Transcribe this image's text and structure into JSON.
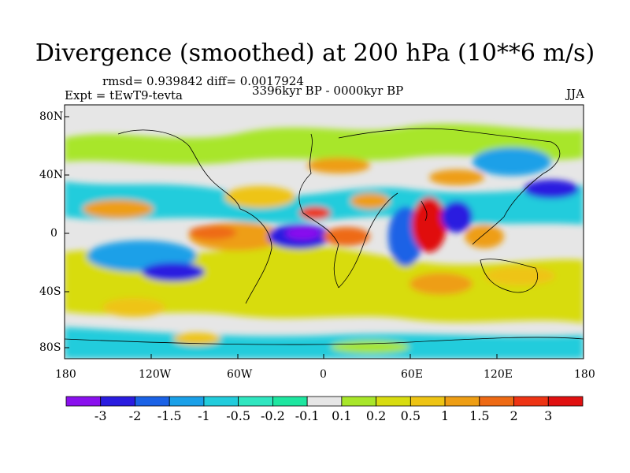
{
  "header": {
    "title": "Divergence (smoothed) at 200 hPa (10**6 m/s)",
    "stats": "rmsd= 0.939842 diff= 0.0017924",
    "experiment": "Expt = tEwT9-tevta",
    "period": "3396kyr BP - 0000kyr BP",
    "season": "JJA"
  },
  "axes": {
    "lat_labels": [
      "80N",
      "40N",
      "0",
      "40S",
      "80S"
    ],
    "lon_labels": [
      "180",
      "120W",
      "60W",
      "0",
      "60E",
      "120E",
      "180"
    ]
  },
  "colorbar": {
    "labels": [
      "-3",
      "-2",
      "-1.5",
      "-1",
      "-0.5",
      "-0.2",
      "-0.1",
      "0.1",
      "0.2",
      "0.5",
      "1",
      "1.5",
      "2",
      "3"
    ],
    "colors": [
      "#8a10ee",
      "#2a1ce0",
      "#1a62e6",
      "#1aa0e8",
      "#22ccdc",
      "#30e6c0",
      "#1ee6a0",
      "#e6e6e6",
      "#a8e62a",
      "#d8dc10",
      "#eec414",
      "#ee9e14",
      "#ee6a14",
      "#ee3414",
      "#e01010"
    ]
  },
  "colors": {
    "neutral": "#e6e6e6",
    "coastline": "#000000"
  }
}
